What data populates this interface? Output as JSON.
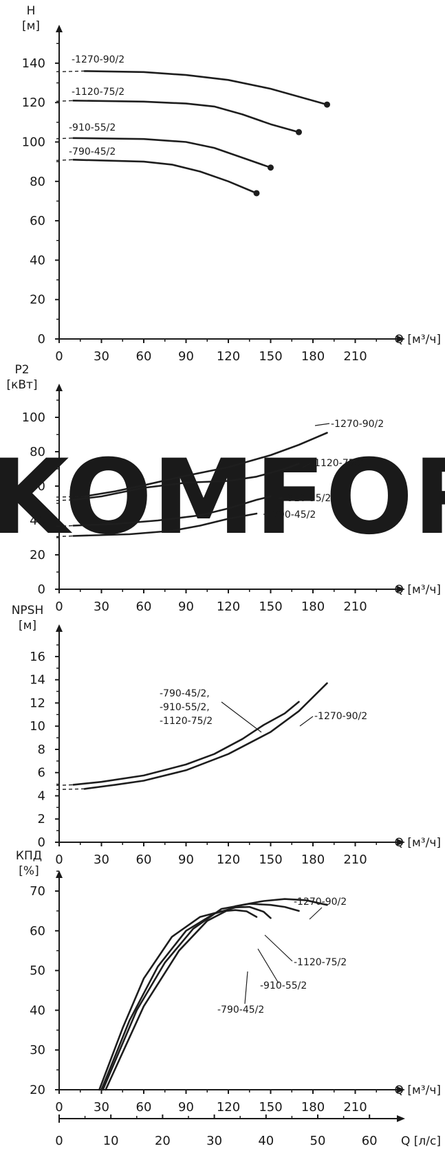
{
  "watermark": {
    "text": "©KOMFORT",
    "color": "#e3e3e3"
  },
  "colors": {
    "curve": "#1e1e1e",
    "axis": "#1a1a1a"
  },
  "chart_data": [
    {
      "type": "line",
      "title": "",
      "ylabel_top": "H",
      "ylabel_unit": "[м]",
      "xlabel": "Q [м³/ч]",
      "xlim": [
        0,
        230
      ],
      "ylim": [
        0,
        160
      ],
      "x_ticks": [
        0,
        30,
        60,
        90,
        120,
        150,
        180,
        210
      ],
      "y_ticks": [
        0,
        20,
        40,
        60,
        80,
        100,
        120,
        140
      ],
      "series": [
        {
          "name": "-1270-90/2",
          "dashed_start": [
            0,
            18
          ],
          "end_marker": true,
          "points": [
            [
              18,
              136
            ],
            [
              60,
              135.5
            ],
            [
              90,
              134
            ],
            [
              120,
              131.5
            ],
            [
              150,
              127
            ],
            [
              170,
              123
            ],
            [
              190,
              119
            ]
          ]
        },
        {
          "name": "-1120-75/2",
          "dashed_start": [
            0,
            10
          ],
          "end_marker": true,
          "points": [
            [
              10,
              121
            ],
            [
              60,
              120.5
            ],
            [
              90,
              119.5
            ],
            [
              110,
              118
            ],
            [
              130,
              114
            ],
            [
              150,
              109
            ],
            [
              170,
              105
            ]
          ]
        },
        {
          "name": "-910-55/2",
          "dashed_start": [
            0,
            10
          ],
          "end_marker": true,
          "points": [
            [
              10,
              102
            ],
            [
              60,
              101.5
            ],
            [
              90,
              100
            ],
            [
              110,
              97
            ],
            [
              130,
              92
            ],
            [
              150,
              87
            ]
          ]
        },
        {
          "name": "-790-45/2",
          "dashed_start": [
            0,
            10
          ],
          "end_marker": true,
          "points": [
            [
              10,
              91
            ],
            [
              60,
              90
            ],
            [
              80,
              88.5
            ],
            [
              100,
              85
            ],
            [
              120,
              80
            ],
            [
              140,
              74
            ]
          ]
        }
      ]
    },
    {
      "type": "line",
      "title": "",
      "ylabel_top": "P2",
      "ylabel_unit": "[кВт]",
      "xlabel": "Q [м³/ч]",
      "xlim": [
        0,
        230
      ],
      "ylim": [
        0,
        110
      ],
      "x_ticks": [
        0,
        30,
        60,
        90,
        120,
        150,
        180,
        210
      ],
      "y_ticks": [
        0,
        20,
        40,
        60,
        80,
        100
      ],
      "series": [
        {
          "name": "-1270-90/2",
          "dashed_start": [
            0,
            18
          ],
          "points": [
            [
              18,
              54
            ],
            [
              40,
              57
            ],
            [
              60,
              60.5
            ],
            [
              90,
              66
            ],
            [
              120,
              71
            ],
            [
              150,
              78
            ],
            [
              170,
              84
            ],
            [
              190,
              91
            ]
          ]
        },
        {
          "name": "-1120-75/2",
          "dashed_start": [
            0,
            10
          ],
          "points": [
            [
              10,
              52
            ],
            [
              30,
              54
            ],
            [
              60,
              59
            ],
            [
              90,
              62
            ],
            [
              120,
              63
            ],
            [
              140,
              65.5
            ],
            [
              160,
              70
            ],
            [
              170,
              73
            ]
          ]
        },
        {
          "name": "-910-55/2",
          "dashed_start": [
            0,
            10
          ],
          "points": [
            [
              10,
              37
            ],
            [
              40,
              38
            ],
            [
              70,
              40
            ],
            [
              100,
              43
            ],
            [
              120,
              47
            ],
            [
              140,
              52
            ],
            [
              150,
              54
            ]
          ]
        },
        {
          "name": "-790-45/2",
          "dashed_start": [
            0,
            10
          ],
          "points": [
            [
              10,
              31
            ],
            [
              50,
              32
            ],
            [
              80,
              34
            ],
            [
              100,
              37
            ],
            [
              120,
              41
            ],
            [
              140,
              44
            ]
          ]
        }
      ]
    },
    {
      "type": "line",
      "title": "",
      "ylabel_top": "NPSH",
      "ylabel_unit": "[м]",
      "xlabel": "Q [м³/ч]",
      "xlim": [
        0,
        230
      ],
      "ylim": [
        0,
        18
      ],
      "x_ticks": [
        0,
        30,
        60,
        90,
        120,
        150,
        180,
        210
      ],
      "y_ticks": [
        0,
        2,
        4,
        6,
        8,
        10,
        12,
        14,
        16
      ],
      "series": [
        {
          "name": "-790-45/2, -910-55/2, -1120-75/2",
          "dashed_start": [
            0,
            10
          ],
          "points": [
            [
              10,
              4.95
            ],
            [
              30,
              5.2
            ],
            [
              60,
              5.75
            ],
            [
              90,
              6.7
            ],
            [
              110,
              7.6
            ],
            [
              130,
              8.9
            ],
            [
              145,
              10.1
            ],
            [
              160,
              11.1
            ],
            [
              170,
              12.1
            ]
          ]
        },
        {
          "name": "-1270-90/2",
          "dashed_start": [
            0,
            18
          ],
          "points": [
            [
              18,
              4.6
            ],
            [
              40,
              4.95
            ],
            [
              60,
              5.3
            ],
            [
              90,
              6.2
            ],
            [
              120,
              7.6
            ],
            [
              150,
              9.5
            ],
            [
              170,
              11.3
            ],
            [
              190,
              13.7
            ]
          ]
        }
      ]
    },
    {
      "type": "line",
      "title": "",
      "ylabel_top": "КПД",
      "ylabel_unit": "[%]",
      "xlabel": "Q [м³/ч]",
      "xlim": [
        0,
        230
      ],
      "ylim": [
        20,
        75
      ],
      "x_ticks": [
        0,
        30,
        60,
        90,
        120,
        150,
        180,
        210
      ],
      "y_ticks": [
        20,
        30,
        40,
        50,
        60,
        70
      ],
      "series": [
        {
          "name": "-790-45/2",
          "points": [
            [
              28.5,
              20
            ],
            [
              45,
              35.5
            ],
            [
              60,
              48
            ],
            [
              80,
              58.5
            ],
            [
              100,
              63.5
            ],
            [
              115,
              64.9
            ],
            [
              125,
              65.2
            ],
            [
              133,
              64.9
            ],
            [
              140,
              63.5
            ]
          ]
        },
        {
          "name": "-910-55/2",
          "points": [
            [
              30,
              20
            ],
            [
              50,
              37.5
            ],
            [
              70,
              51
            ],
            [
              90,
              60
            ],
            [
              110,
              64.3
            ],
            [
              125,
              65.9
            ],
            [
              135,
              66
            ],
            [
              145,
              64.8
            ],
            [
              150,
              63.2
            ]
          ]
        },
        {
          "name": "-1120-75/2",
          "points": [
            [
              31,
              20
            ],
            [
              55,
              40
            ],
            [
              75,
              52
            ],
            [
              95,
              60.5
            ],
            [
              115,
              65.5
            ],
            [
              135,
              66.8
            ],
            [
              150,
              66.5
            ],
            [
              160,
              66
            ],
            [
              170,
              65
            ]
          ]
        },
        {
          "name": "-1270-90/2",
          "points": [
            [
              33,
              20
            ],
            [
              60,
              41
            ],
            [
              85,
              55
            ],
            [
              105,
              62.5
            ],
            [
              125,
              66.2
            ],
            [
              145,
              67.5
            ],
            [
              160,
              68
            ],
            [
              175,
              67.7
            ],
            [
              190,
              66.5
            ]
          ]
        }
      ]
    },
    {
      "type": "axis",
      "title": "",
      "xlabel": "Q [л/с]",
      "xlim": [
        0,
        65
      ],
      "x_ticks": [
        0,
        10,
        20,
        30,
        40,
        50,
        60
      ]
    }
  ]
}
